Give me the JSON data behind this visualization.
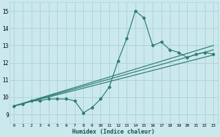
{
  "xlabel": "Humidex (Indice chaleur)",
  "bg_color": "#cbe8ed",
  "grid_color": "#aad4d9",
  "line_color": "#2e7d6e",
  "xlim": [
    -0.5,
    23.5
  ],
  "ylim": [
    8.5,
    15.5
  ],
  "xticks": [
    0,
    1,
    2,
    3,
    4,
    5,
    6,
    7,
    8,
    9,
    10,
    11,
    12,
    13,
    14,
    15,
    16,
    17,
    18,
    19,
    20,
    21,
    22,
    23
  ],
  "yticks": [
    9,
    10,
    11,
    12,
    13,
    14,
    15
  ],
  "main_series": {
    "x": [
      0,
      1,
      2,
      3,
      4,
      5,
      6,
      7,
      8,
      9,
      10,
      11,
      12,
      13,
      14,
      15,
      16,
      17,
      18,
      19,
      20,
      21,
      22,
      23
    ],
    "y": [
      9.5,
      9.6,
      9.8,
      9.8,
      9.9,
      9.9,
      9.9,
      9.8,
      9.1,
      9.4,
      9.9,
      10.6,
      12.1,
      13.4,
      15.0,
      14.6,
      13.0,
      13.2,
      12.75,
      12.6,
      12.3,
      12.5,
      12.6,
      12.5
    ]
  },
  "trend_lines": [
    {
      "x0": 0,
      "y0": 9.5,
      "x1": 23,
      "y1": 12.45
    },
    {
      "x0": 0,
      "y0": 9.5,
      "x1": 23,
      "y1": 12.75
    },
    {
      "x0": 0,
      "y0": 9.5,
      "x1": 23,
      "y1": 13.0
    }
  ]
}
